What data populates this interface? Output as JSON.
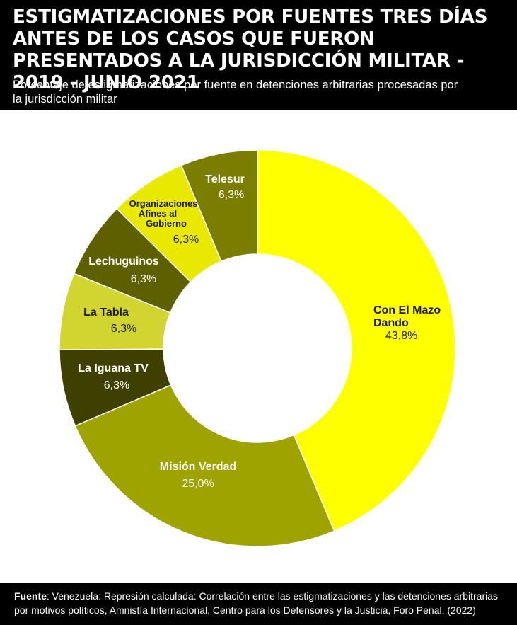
{
  "header": {
    "title": "ESTIGMATIZACIONES POR FUENTES TRES DÍAS ANTES DE LOS CASOS QUE FUERON PRESENTADOS A LA JURISDICCIÓN MILITAR - 2019 - JUNIO 2021",
    "subtitle": "Porcentaje de estigmatizaciones por fuente en detenciones arbitrarias procesadas por la jurisdicción militar"
  },
  "footer": {
    "source_label": "Fuente",
    "source_text": ": Venezuela: Represión calculada: Correlación entre las estigmatizaciones y las detenciones arbitrarias por motivos políticos, Amnistía Internacional, Centro para los Defensores y la Justicia, Foro Penal. (2022)"
  },
  "chart_data": {
    "type": "pie",
    "variant": "donut",
    "title": "Porcentaje de estigmatizaciones por fuente en detenciones arbitrarias procesadas por la jurisdicción militar",
    "unit": "%",
    "slices": [
      {
        "name": "Con El Mazo Dando",
        "value": 43.8,
        "label": "43,8%",
        "color": "#ffff00",
        "text_color": "#1a1a00"
      },
      {
        "name": "Misión Verdad",
        "value": 25.0,
        "label": "25,0%",
        "color": "#9ea300",
        "text_color": "#ffffff"
      },
      {
        "name": "La Iguana TV",
        "value": 6.3,
        "label": "6,3%",
        "color": "#3e4000",
        "text_color": "#ffffff"
      },
      {
        "name": "La Tabla",
        "value": 6.3,
        "label": "6,3%",
        "color": "#d2d430",
        "text_color": "#1a1a00"
      },
      {
        "name": "Lechuguinos",
        "value": 6.3,
        "label": "6,3%",
        "color": "#5e6000",
        "text_color": "#ffffff"
      },
      {
        "name": "Organizaciones Afines al Gobierno",
        "value": 6.3,
        "label": "6,3%",
        "color": "#e8e800",
        "text_color": "#1a1a00"
      },
      {
        "name": "Telesur",
        "value": 6.3,
        "label": "6,3%",
        "color": "#7a7d00",
        "text_color": "#ffffff"
      }
    ]
  }
}
